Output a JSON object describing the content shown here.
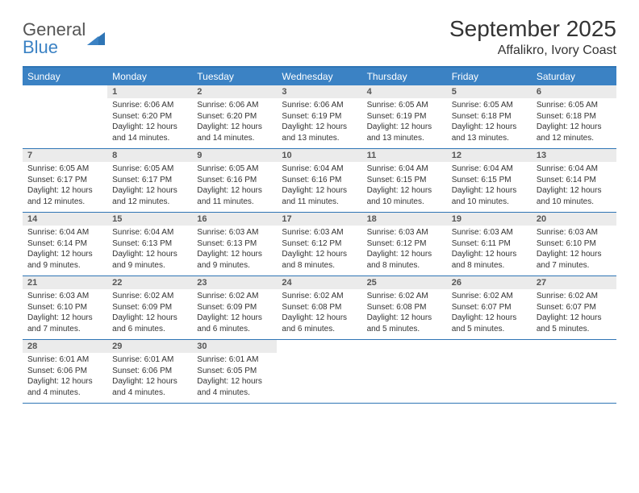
{
  "logo": {
    "text_general": "General",
    "text_blue": "Blue"
  },
  "header": {
    "month": "September 2025",
    "location": "Affalikro, Ivory Coast"
  },
  "colors": {
    "header_blue": "#3b82c4",
    "rule_blue": "#2f75b5",
    "daynum_bg": "#ebebeb",
    "daynum_text": "#555555",
    "body_text": "#333333",
    "white": "#ffffff"
  },
  "dayNames": [
    "Sunday",
    "Monday",
    "Tuesday",
    "Wednesday",
    "Thursday",
    "Friday",
    "Saturday"
  ],
  "weeks": [
    [
      {
        "n": "",
        "lines": []
      },
      {
        "n": "1",
        "lines": [
          "Sunrise: 6:06 AM",
          "Sunset: 6:20 PM",
          "Daylight: 12 hours",
          "and 14 minutes."
        ]
      },
      {
        "n": "2",
        "lines": [
          "Sunrise: 6:06 AM",
          "Sunset: 6:20 PM",
          "Daylight: 12 hours",
          "and 14 minutes."
        ]
      },
      {
        "n": "3",
        "lines": [
          "Sunrise: 6:06 AM",
          "Sunset: 6:19 PM",
          "Daylight: 12 hours",
          "and 13 minutes."
        ]
      },
      {
        "n": "4",
        "lines": [
          "Sunrise: 6:05 AM",
          "Sunset: 6:19 PM",
          "Daylight: 12 hours",
          "and 13 minutes."
        ]
      },
      {
        "n": "5",
        "lines": [
          "Sunrise: 6:05 AM",
          "Sunset: 6:18 PM",
          "Daylight: 12 hours",
          "and 13 minutes."
        ]
      },
      {
        "n": "6",
        "lines": [
          "Sunrise: 6:05 AM",
          "Sunset: 6:18 PM",
          "Daylight: 12 hours",
          "and 12 minutes."
        ]
      }
    ],
    [
      {
        "n": "7",
        "lines": [
          "Sunrise: 6:05 AM",
          "Sunset: 6:17 PM",
          "Daylight: 12 hours",
          "and 12 minutes."
        ]
      },
      {
        "n": "8",
        "lines": [
          "Sunrise: 6:05 AM",
          "Sunset: 6:17 PM",
          "Daylight: 12 hours",
          "and 12 minutes."
        ]
      },
      {
        "n": "9",
        "lines": [
          "Sunrise: 6:05 AM",
          "Sunset: 6:16 PM",
          "Daylight: 12 hours",
          "and 11 minutes."
        ]
      },
      {
        "n": "10",
        "lines": [
          "Sunrise: 6:04 AM",
          "Sunset: 6:16 PM",
          "Daylight: 12 hours",
          "and 11 minutes."
        ]
      },
      {
        "n": "11",
        "lines": [
          "Sunrise: 6:04 AM",
          "Sunset: 6:15 PM",
          "Daylight: 12 hours",
          "and 10 minutes."
        ]
      },
      {
        "n": "12",
        "lines": [
          "Sunrise: 6:04 AM",
          "Sunset: 6:15 PM",
          "Daylight: 12 hours",
          "and 10 minutes."
        ]
      },
      {
        "n": "13",
        "lines": [
          "Sunrise: 6:04 AM",
          "Sunset: 6:14 PM",
          "Daylight: 12 hours",
          "and 10 minutes."
        ]
      }
    ],
    [
      {
        "n": "14",
        "lines": [
          "Sunrise: 6:04 AM",
          "Sunset: 6:14 PM",
          "Daylight: 12 hours",
          "and 9 minutes."
        ]
      },
      {
        "n": "15",
        "lines": [
          "Sunrise: 6:04 AM",
          "Sunset: 6:13 PM",
          "Daylight: 12 hours",
          "and 9 minutes."
        ]
      },
      {
        "n": "16",
        "lines": [
          "Sunrise: 6:03 AM",
          "Sunset: 6:13 PM",
          "Daylight: 12 hours",
          "and 9 minutes."
        ]
      },
      {
        "n": "17",
        "lines": [
          "Sunrise: 6:03 AM",
          "Sunset: 6:12 PM",
          "Daylight: 12 hours",
          "and 8 minutes."
        ]
      },
      {
        "n": "18",
        "lines": [
          "Sunrise: 6:03 AM",
          "Sunset: 6:12 PM",
          "Daylight: 12 hours",
          "and 8 minutes."
        ]
      },
      {
        "n": "19",
        "lines": [
          "Sunrise: 6:03 AM",
          "Sunset: 6:11 PM",
          "Daylight: 12 hours",
          "and 8 minutes."
        ]
      },
      {
        "n": "20",
        "lines": [
          "Sunrise: 6:03 AM",
          "Sunset: 6:10 PM",
          "Daylight: 12 hours",
          "and 7 minutes."
        ]
      }
    ],
    [
      {
        "n": "21",
        "lines": [
          "Sunrise: 6:03 AM",
          "Sunset: 6:10 PM",
          "Daylight: 12 hours",
          "and 7 minutes."
        ]
      },
      {
        "n": "22",
        "lines": [
          "Sunrise: 6:02 AM",
          "Sunset: 6:09 PM",
          "Daylight: 12 hours",
          "and 6 minutes."
        ]
      },
      {
        "n": "23",
        "lines": [
          "Sunrise: 6:02 AM",
          "Sunset: 6:09 PM",
          "Daylight: 12 hours",
          "and 6 minutes."
        ]
      },
      {
        "n": "24",
        "lines": [
          "Sunrise: 6:02 AM",
          "Sunset: 6:08 PM",
          "Daylight: 12 hours",
          "and 6 minutes."
        ]
      },
      {
        "n": "25",
        "lines": [
          "Sunrise: 6:02 AM",
          "Sunset: 6:08 PM",
          "Daylight: 12 hours",
          "and 5 minutes."
        ]
      },
      {
        "n": "26",
        "lines": [
          "Sunrise: 6:02 AM",
          "Sunset: 6:07 PM",
          "Daylight: 12 hours",
          "and 5 minutes."
        ]
      },
      {
        "n": "27",
        "lines": [
          "Sunrise: 6:02 AM",
          "Sunset: 6:07 PM",
          "Daylight: 12 hours",
          "and 5 minutes."
        ]
      }
    ],
    [
      {
        "n": "28",
        "lines": [
          "Sunrise: 6:01 AM",
          "Sunset: 6:06 PM",
          "Daylight: 12 hours",
          "and 4 minutes."
        ]
      },
      {
        "n": "29",
        "lines": [
          "Sunrise: 6:01 AM",
          "Sunset: 6:06 PM",
          "Daylight: 12 hours",
          "and 4 minutes."
        ]
      },
      {
        "n": "30",
        "lines": [
          "Sunrise: 6:01 AM",
          "Sunset: 6:05 PM",
          "Daylight: 12 hours",
          "and 4 minutes."
        ]
      },
      {
        "n": "",
        "lines": []
      },
      {
        "n": "",
        "lines": []
      },
      {
        "n": "",
        "lines": []
      },
      {
        "n": "",
        "lines": []
      }
    ]
  ]
}
